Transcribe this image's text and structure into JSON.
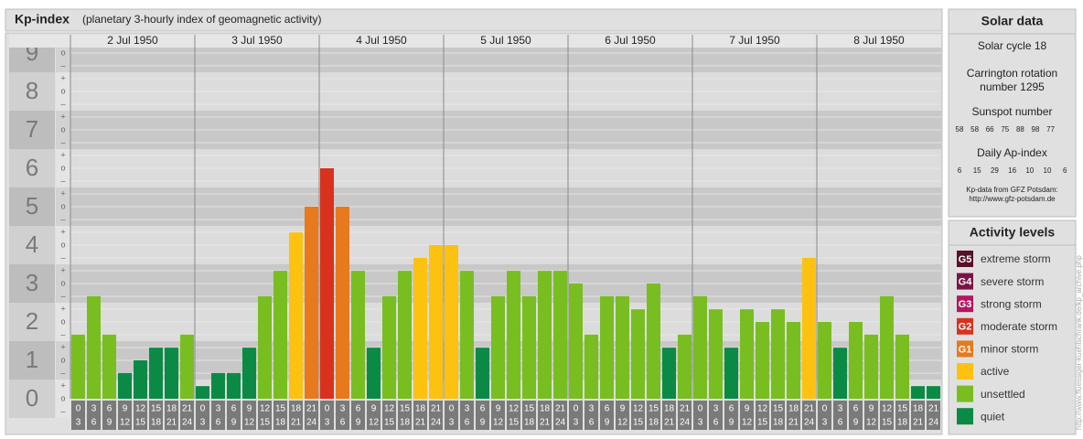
{
  "title": "Kp-index",
  "subtitle": "(planetary 3-hourly index of geomagnetic activity)",
  "chart_data": {
    "type": "bar",
    "days": [
      "2 Jul 1950",
      "3 Jul 1950",
      "4 Jul 1950",
      "5 Jul 1950",
      "6 Jul 1950",
      "7 Jul 1950",
      "8 Jul 1950"
    ],
    "hours": [
      [
        "0",
        "3"
      ],
      [
        "3",
        "6"
      ],
      [
        "6",
        "9"
      ],
      [
        "9",
        "12"
      ],
      [
        "12",
        "15"
      ],
      [
        "15",
        "18"
      ],
      [
        "18",
        "21"
      ],
      [
        "21",
        "24"
      ]
    ],
    "values": [
      1.67,
      2.67,
      1.67,
      0.67,
      1,
      1.33,
      1.33,
      1.67,
      0.33,
      0.67,
      0.67,
      1.33,
      2.67,
      3.33,
      4.33,
      5,
      6,
      5,
      3.33,
      1.33,
      2.67,
      3.33,
      3.67,
      4,
      4,
      3.33,
      1.33,
      2.67,
      3.33,
      2.67,
      3.33,
      3.33,
      3,
      1.67,
      2.67,
      2.67,
      2.33,
      3,
      1.33,
      1.67,
      2.67,
      2.33,
      1.33,
      2.33,
      2,
      2.33,
      2,
      3.67,
      2,
      1.33,
      2,
      1.67,
      2.67,
      1.67,
      0.33,
      0.33
    ],
    "colors": [
      "#78be21",
      "#78be21",
      "#78be21",
      "#0b8a46",
      "#0b8a46",
      "#0b8a46",
      "#0b8a46",
      "#78be21",
      "#0b8a46",
      "#0b8a46",
      "#0b8a46",
      "#0b8a46",
      "#78be21",
      "#78be21",
      "#fdc20f",
      "#e67a1c",
      "#d8321e",
      "#e67a1c",
      "#78be21",
      "#0b8a46",
      "#78be21",
      "#78be21",
      "#fdc20f",
      "#fdc20f",
      "#fdc20f",
      "#78be21",
      "#0b8a46",
      "#78be21",
      "#78be21",
      "#78be21",
      "#78be21",
      "#78be21",
      "#78be21",
      "#78be21",
      "#78be21",
      "#78be21",
      "#78be21",
      "#78be21",
      "#0b8a46",
      "#78be21",
      "#78be21",
      "#78be21",
      "#0b8a46",
      "#78be21",
      "#78be21",
      "#78be21",
      "#78be21",
      "#fdc20f",
      "#78be21",
      "#0b8a46",
      "#78be21",
      "#78be21",
      "#78be21",
      "#78be21",
      "#0b8a46",
      "#0b8a46"
    ],
    "ylim": [
      0,
      9
    ],
    "yticks": [
      0,
      1,
      2,
      3,
      4,
      5,
      6,
      7,
      8,
      9
    ],
    "ytick_symbols": [
      "–",
      "o",
      "+"
    ]
  },
  "solar_data": {
    "title": "Solar data",
    "cycle": "Solar cycle 18",
    "carrington": [
      "Carrington rotation",
      "number 1295"
    ],
    "sunspot_title": "Sunspot number",
    "sunspot": [
      58,
      58,
      66,
      75,
      88,
      98,
      77
    ],
    "ap_title": "Daily Ap-index",
    "ap": [
      6,
      15,
      29,
      16,
      10,
      10,
      6
    ],
    "source": [
      "Kp-data from GFZ Potsdam:",
      "http://www.gfz-potsdam.de"
    ]
  },
  "activity_levels": {
    "title": "Activity levels",
    "items": [
      {
        "badge": "G5",
        "label": "extreme storm",
        "color": "#5a0f2a"
      },
      {
        "badge": "G4",
        "label": "severe storm",
        "color": "#7b1446"
      },
      {
        "badge": "G3",
        "label": "strong storm",
        "color": "#b5175e"
      },
      {
        "badge": "G2",
        "label": "moderate storm",
        "color": "#d8321e"
      },
      {
        "badge": "G1",
        "label": "minor storm",
        "color": "#e67a1c"
      },
      {
        "label": "active",
        "color": "#fdc20f"
      },
      {
        "label": "unsettled",
        "color": "#78be21"
      },
      {
        "label": "quiet",
        "color": "#0b8a46"
      }
    ]
  },
  "credit": "http://www.fluessiger-kuehlschrank.de/kp_archive.php"
}
